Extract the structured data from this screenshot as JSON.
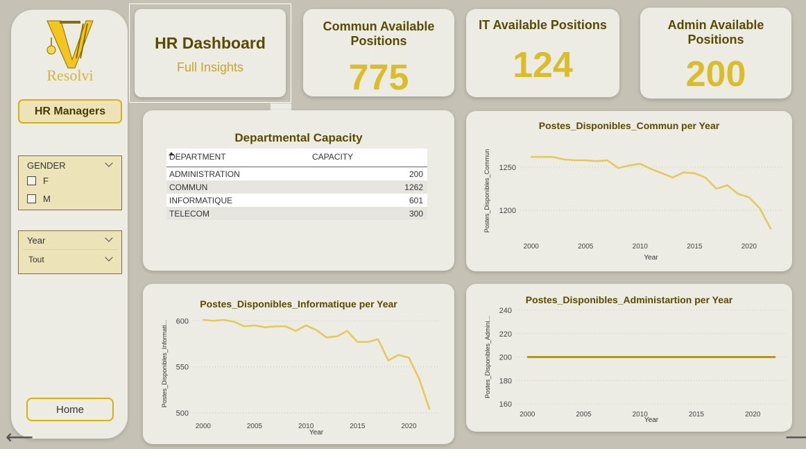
{
  "sidebar": {
    "logo_text": "Resolvi",
    "hr_button_label": "HR Managers",
    "gender_slicer": {
      "title": "GENDER",
      "options": [
        "F",
        "M"
      ]
    },
    "year_slicer": {
      "title": "Year",
      "selected": "Tout"
    },
    "home_button_label": "Home"
  },
  "header": {
    "title": "HR Dashboard",
    "subtitle": "Full Insights"
  },
  "kpis": [
    {
      "title": "Commun Available Positions",
      "value": "775"
    },
    {
      "title": "IT Available Positions",
      "value": "124"
    },
    {
      "title": "Admin Available Positions",
      "value": "200"
    }
  ],
  "capacity_table": {
    "title": "Departmental Capacity",
    "columns": [
      "DEPARTMENT",
      "CAPACITY"
    ],
    "rows": [
      [
        "ADMINISTRATION",
        "200"
      ],
      [
        "COMMUN",
        "1262"
      ],
      [
        "INFORMATIQUE",
        "601"
      ],
      [
        "TELECOM",
        "300"
      ]
    ]
  },
  "colors": {
    "accent": "#dbbd2b",
    "line_light": "#e3c85a",
    "line_dark": "#b8960e",
    "title_dark": "#5a4a00",
    "background": "#c5c1b4",
    "card": "#ecebe4"
  },
  "chart_data": [
    {
      "type": "line",
      "title": "Postes_Disponibles_Commun per Year",
      "xlabel": "Year",
      "ylabel": "Postes_Disponibles_Commun",
      "xticks": [
        2000,
        2005,
        2010,
        2015,
        2020
      ],
      "yticks": [
        1200,
        1250
      ],
      "xlim": [
        1999,
        2023
      ],
      "ylim": [
        1170,
        1275
      ],
      "grid": true,
      "x": [
        2000,
        2001,
        2002,
        2003,
        2004,
        2005,
        2006,
        2007,
        2008,
        2009,
        2010,
        2011,
        2012,
        2013,
        2014,
        2015,
        2016,
        2017,
        2018,
        2019,
        2020,
        2021,
        2022
      ],
      "series": [
        {
          "values": [
            1262,
            1262,
            1262,
            1259,
            1258,
            1258,
            1257,
            1258,
            1249,
            1252,
            1254,
            1248,
            1243,
            1238,
            1244,
            1243,
            1238,
            1225,
            1229,
            1219,
            1215,
            1202,
            1178
          ]
        }
      ]
    },
    {
      "type": "line",
      "title": "Postes_Disponibles_Informatique per Year",
      "xlabel": "Year",
      "ylabel": "Postes_Disponibles_Informati...",
      "xticks": [
        2000,
        2005,
        2010,
        2015,
        2020
      ],
      "yticks": [
        500,
        550,
        600
      ],
      "xlim": [
        1999,
        2023
      ],
      "ylim": [
        497,
        610
      ],
      "grid": true,
      "x": [
        2000,
        2001,
        2002,
        2003,
        2004,
        2005,
        2006,
        2007,
        2008,
        2009,
        2010,
        2011,
        2012,
        2013,
        2014,
        2015,
        2016,
        2017,
        2018,
        2019,
        2020,
        2021,
        2022
      ],
      "series": [
        {
          "values": [
            601,
            600,
            601,
            599,
            594,
            595,
            593,
            594,
            594,
            589,
            595,
            590,
            582,
            583,
            589,
            577,
            577,
            580,
            557,
            563,
            560,
            537,
            504
          ]
        }
      ]
    },
    {
      "type": "line",
      "title": "Postes_Disponibles_Administartion per Year",
      "xlabel": "Year",
      "ylabel": "Postes_Disponibles_Admini...",
      "xticks": [
        2000,
        2005,
        2010,
        2015,
        2020
      ],
      "yticks": [
        160,
        180,
        200,
        220,
        240
      ],
      "xlim": [
        1999,
        2023
      ],
      "ylim": [
        160,
        240
      ],
      "grid": true,
      "x": [
        2000,
        2001,
        2002,
        2003,
        2004,
        2005,
        2006,
        2007,
        2008,
        2009,
        2010,
        2011,
        2012,
        2013,
        2014,
        2015,
        2016,
        2017,
        2018,
        2019,
        2020,
        2021,
        2022
      ],
      "series": [
        {
          "values": [
            200,
            200,
            200,
            200,
            200,
            200,
            200,
            200,
            200,
            200,
            200,
            200,
            200,
            200,
            200,
            200,
            200,
            200,
            200,
            200,
            200,
            200,
            200
          ]
        }
      ]
    }
  ]
}
